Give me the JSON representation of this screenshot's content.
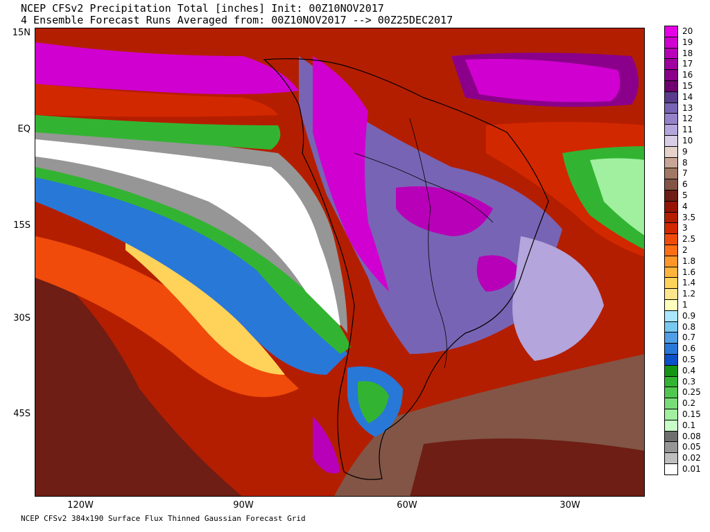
{
  "title": {
    "line1": "NCEP CFSv2 Precipitation Total [inches] Init: 00Z10NOV2017",
    "line2": "4 Ensemble Forecast Runs Averaged from: 00Z10NOV2017 --> 00Z25DEC2017"
  },
  "footer": "NCEP CFSv2 384x190 Surface Flux Thinned Gaussian Forecast Grid",
  "lat_labels": [
    "15N",
    "EQ",
    "15S",
    "30S",
    "45S"
  ],
  "lon_labels": [
    "120W",
    "90W",
    "60W",
    "30W"
  ],
  "colorbar": {
    "levels": [
      "20",
      "19",
      "18",
      "17",
      "16",
      "15",
      "14",
      "13",
      "12",
      "11",
      "10",
      "9",
      "8",
      "7",
      "6",
      "5",
      "4",
      "3.5",
      "3",
      "2.5",
      "2",
      "1.8",
      "1.6",
      "1.4",
      "1.2",
      "1",
      "0.9",
      "0.8",
      "0.7",
      "0.6",
      "0.5",
      "0.4",
      "0.3",
      "0.25",
      "0.2",
      "0.15",
      "0.1",
      "0.08",
      "0.05",
      "0.02",
      "0.01"
    ],
    "colors": [
      "#e600e6",
      "#d000d0",
      "#b800b8",
      "#a000a0",
      "#8a008a",
      "#700070",
      "#5a3c8c",
      "#7864b4",
      "#9682c8",
      "#b4a5dc",
      "#d7cde6",
      "#e6d2c8",
      "#c8a596",
      "#a07864",
      "#825546",
      "#6e1e14",
      "#961405",
      "#b41e00",
      "#d22800",
      "#f04b0a",
      "#ff6e14",
      "#ff9628",
      "#ffb43c",
      "#ffd25a",
      "#ffe68c",
      "#ffffbe",
      "#aae6ff",
      "#78c8f0",
      "#509ee6",
      "#2878d7",
      "#0a50c8",
      "#149614",
      "#32b432",
      "#50c850",
      "#78dc78",
      "#a0f0a0",
      "#c8ffc8",
      "#6e6e6e",
      "#969696",
      "#bebebe",
      "#ffffff"
    ]
  }
}
